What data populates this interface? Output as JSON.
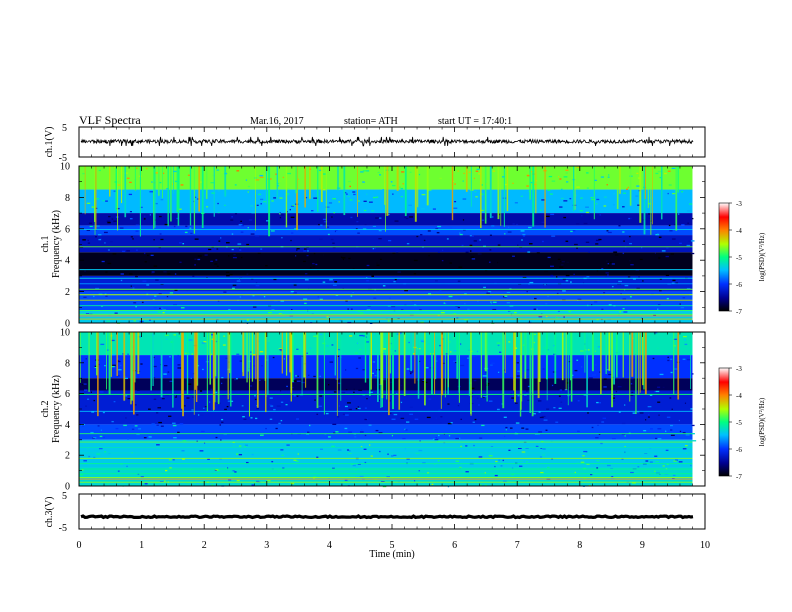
{
  "header": {
    "title": "VLF  Spectra",
    "date": "Mar.16, 2017",
    "station": "station= ATH",
    "start": "start  UT  =    17:40:1"
  },
  "chart_data": [
    {
      "type": "line",
      "name": "ch1-waveform",
      "ylabel": "ch.1(V)",
      "ylim": [
        -5,
        5
      ],
      "yticks": [
        "5",
        "-5"
      ],
      "description_values": {
        "baseline_v": 0.2,
        "typical_amplitude_v": 0.6,
        "spike_amplitude_v": 1.5
      }
    },
    {
      "type": "heatmap",
      "name": "ch1-spectrogram",
      "ylabel": "ch.1\nFrequency (kHz)",
      "ylim": [
        0,
        10
      ],
      "yticks": [
        "0",
        "2",
        "4",
        "6",
        "8",
        "10"
      ],
      "xlim": [
        0,
        9.8
      ],
      "colorbar": {
        "label": "log(PSD)(V²/Hz)",
        "range": [
          -7,
          -3
        ],
        "ticks": [
          "-3",
          "-4",
          "-5",
          "-6",
          "-7"
        ]
      },
      "bands_khz": [
        {
          "from": 8.5,
          "to": 10,
          "level": -4.7
        },
        {
          "from": 7,
          "to": 8.5,
          "level": -5.5
        },
        {
          "from": 6.2,
          "to": 7,
          "level": -6.4
        },
        {
          "from": 5.6,
          "to": 6.2,
          "level": -5.9
        },
        {
          "from": 4.5,
          "to": 5.6,
          "level": -6.3
        },
        {
          "from": 3.0,
          "to": 4.5,
          "level": -6.9
        },
        {
          "from": 2.0,
          "to": 3.0,
          "level": -6.2
        },
        {
          "from": 0.8,
          "to": 2.0,
          "level": -5.9
        },
        {
          "from": 0.0,
          "to": 0.8,
          "level": -5.4
        }
      ]
    },
    {
      "type": "heatmap",
      "name": "ch2-spectrogram",
      "ylabel": "ch.2\nFrequency (kHz)",
      "ylim": [
        0,
        10
      ],
      "yticks": [
        "0",
        "2",
        "4",
        "6",
        "8",
        "10"
      ],
      "xlim": [
        0,
        9.8
      ],
      "colorbar": {
        "label": "log(PSD)(V²/Hz)",
        "range": [
          -7,
          -3
        ],
        "ticks": [
          "-3",
          "-4",
          "-5",
          "-6",
          "-7"
        ]
      },
      "bands_khz": [
        {
          "from": 8.5,
          "to": 10,
          "level": -5.2
        },
        {
          "from": 7,
          "to": 8.5,
          "level": -6.0
        },
        {
          "from": 6.2,
          "to": 7,
          "level": -6.7
        },
        {
          "from": 4.0,
          "to": 6.2,
          "level": -6.2
        },
        {
          "from": 3.0,
          "to": 4.0,
          "level": -5.9
        },
        {
          "from": 1.2,
          "to": 3.0,
          "level": -5.4
        },
        {
          "from": 0.0,
          "to": 1.2,
          "level": -5.3
        }
      ]
    },
    {
      "type": "line",
      "name": "ch3-waveform",
      "ylabel": "ch.3(V)",
      "ylim": [
        -5,
        5
      ],
      "yticks": [
        "5",
        "-5"
      ],
      "description_values": {
        "baseline_v": -1.5,
        "typical_amplitude_v": 0.2
      }
    }
  ],
  "x_axis": {
    "label": "Time  (min)",
    "ticks": [
      "0",
      "1",
      "2",
      "3",
      "4",
      "5",
      "6",
      "7",
      "8",
      "9",
      "10"
    ],
    "xlim": [
      0,
      10
    ]
  }
}
